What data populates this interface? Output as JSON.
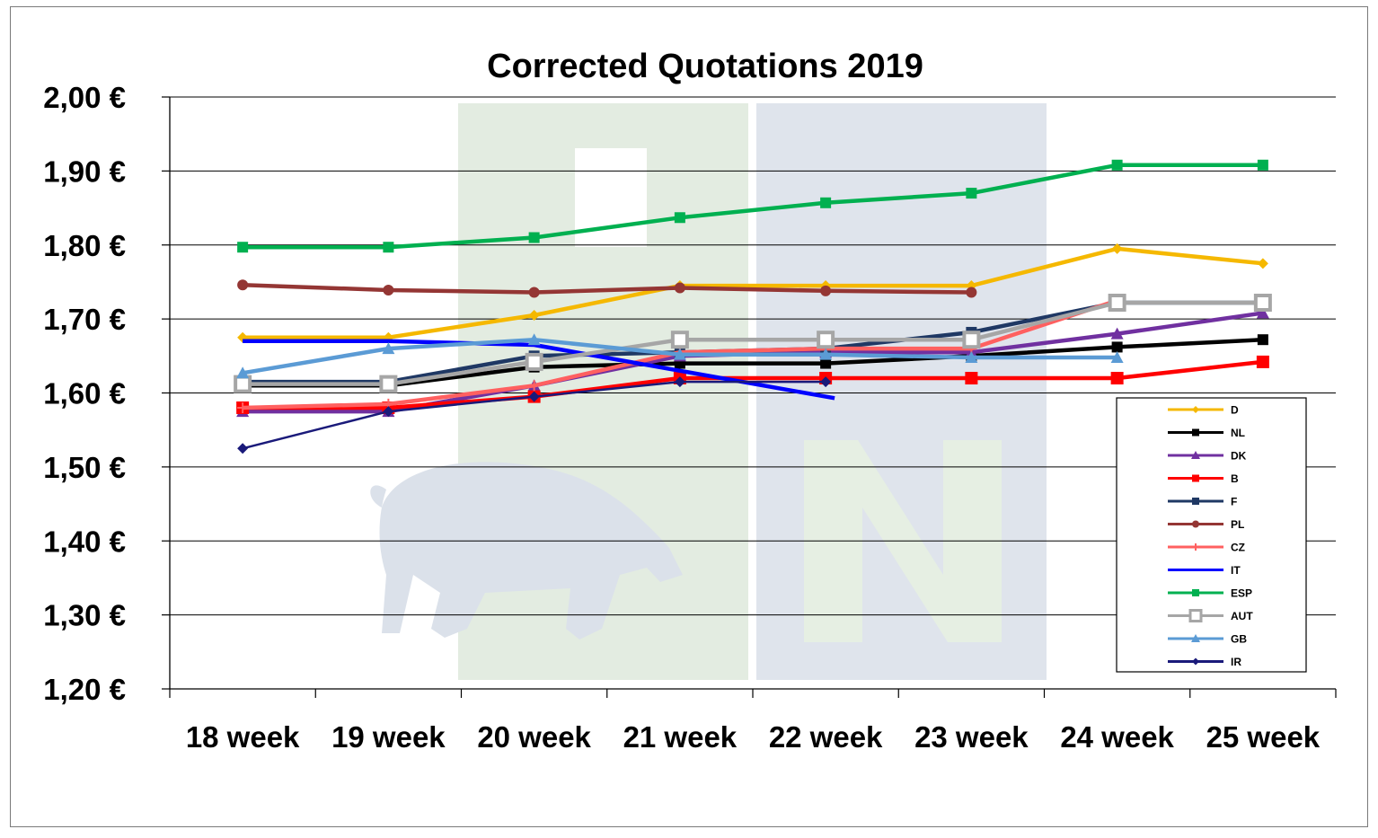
{
  "chart_data": {
    "type": "line",
    "title": "Corrected Quotations 2019",
    "xlabel": "",
    "ylabel": "",
    "categories": [
      "18 week",
      "19 week",
      "20 week",
      "21 week",
      "22 week",
      "23 week",
      "24 week",
      "25 week"
    ],
    "ylim": [
      1.2,
      2.0
    ],
    "yticks": [
      "1,20 €",
      "1,30 €",
      "1,40 €",
      "1,50 €",
      "1,60 €",
      "1,70 €",
      "1,80 €",
      "1,90 €",
      "2,00 €"
    ],
    "grid": true,
    "legend_position": "bottom-right",
    "series": [
      {
        "name": "D",
        "color": "#F5B800",
        "marker": "diamond",
        "values": [
          1.675,
          1.675,
          1.705,
          1.745,
          1.745,
          1.745,
          1.795,
          1.775
        ]
      },
      {
        "name": "NL",
        "color": "#000000",
        "marker": "square",
        "values": [
          1.61,
          1.61,
          1.635,
          1.64,
          1.64,
          1.65,
          1.662,
          1.672
        ]
      },
      {
        "name": "DK",
        "color": "#7030A0",
        "marker": "triangle",
        "values": [
          1.575,
          1.575,
          1.61,
          1.65,
          1.655,
          1.655,
          1.68,
          1.708
        ]
      },
      {
        "name": "B",
        "color": "#FF0000",
        "marker": "square",
        "values": [
          1.58,
          1.58,
          1.595,
          1.62,
          1.62,
          1.62,
          1.62,
          1.642
        ]
      },
      {
        "name": "F",
        "color": "#1F3864",
        "marker": "square",
        "values": [
          1.615,
          1.615,
          1.65,
          1.655,
          1.66,
          1.682,
          1.722,
          1.722
        ]
      },
      {
        "name": "PL",
        "color": "#943634",
        "marker": "circle",
        "values": [
          1.746,
          1.739,
          1.736,
          1.742,
          1.738,
          1.736,
          null,
          null
        ]
      },
      {
        "name": "CZ",
        "color": "#FF6060",
        "marker": "plus",
        "values": [
          1.58,
          1.585,
          1.61,
          1.655,
          1.66,
          1.66,
          1.725,
          null
        ]
      },
      {
        "name": "IT",
        "color": "#0000FF",
        "marker": "none",
        "values": [
          1.67,
          1.67,
          1.665,
          1.63,
          1.593,
          null,
          null,
          null
        ]
      },
      {
        "name": "ESP",
        "color": "#00B050",
        "marker": "square",
        "values": [
          1.797,
          1.797,
          1.81,
          1.837,
          1.857,
          1.87,
          1.908,
          1.908
        ]
      },
      {
        "name": "AUT",
        "color": "#A6A6A6",
        "marker": "square",
        "values": [
          1.612,
          1.612,
          1.642,
          1.672,
          1.672,
          1.672,
          1.722,
          1.722
        ]
      },
      {
        "name": "GB",
        "color": "#5B9BD5",
        "marker": "triangle",
        "values": [
          1.627,
          1.66,
          1.672,
          1.652,
          1.652,
          1.648,
          1.648,
          null
        ]
      },
      {
        "name": "IR",
        "color": "#1A1A7A",
        "marker": "diamond",
        "values": [
          1.525,
          1.575,
          1.595,
          1.615,
          1.615,
          null,
          null,
          null
        ]
      }
    ]
  },
  "watermark": {
    "left_block_color": "#e3ece1",
    "right_block_color": "#dfe4ec",
    "letter_N_color": "#e3ece1",
    "pig_color": "#dbe1ea"
  }
}
